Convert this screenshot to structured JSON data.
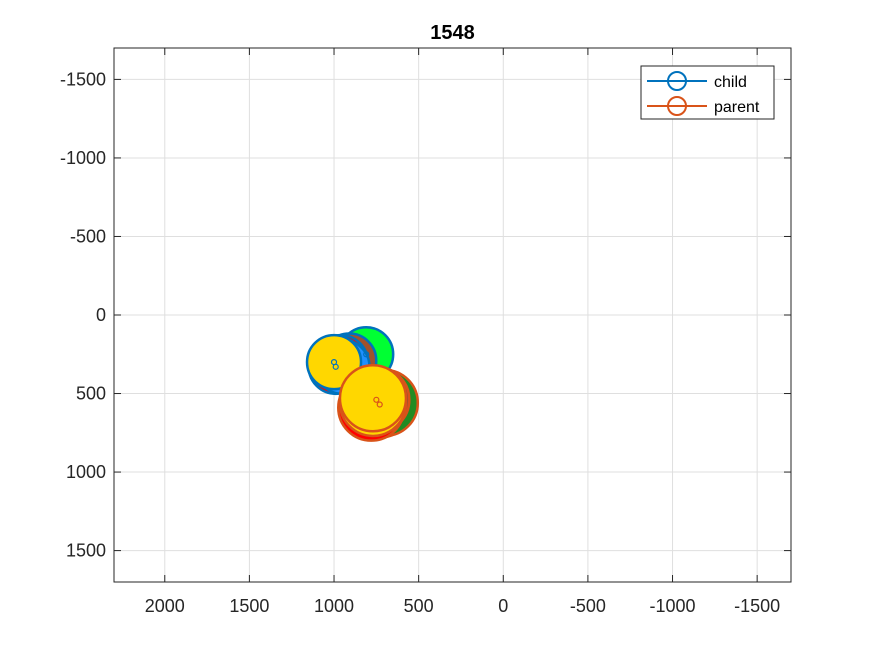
{
  "chart_data": {
    "type": "scatter",
    "title": "1548",
    "xlabel": "",
    "ylabel": "",
    "xlim": [
      2300,
      -1700
    ],
    "ylim": [
      1700,
      -1700
    ],
    "x_reversed": true,
    "y_reversed": true,
    "xticks": [
      2000,
      1500,
      1000,
      500,
      0,
      -500,
      -1000,
      -1500
    ],
    "xtick_labels": [
      "2000",
      "1500",
      "1000",
      "500",
      "0",
      "-500",
      "-1000",
      "-1500"
    ],
    "yticks": [
      -1500,
      -1000,
      -500,
      0,
      500,
      1000,
      1500
    ],
    "ytick_labels": [
      "-1500",
      "-1000",
      "-500",
      "0",
      "500",
      "1000",
      "1500"
    ],
    "grid": true,
    "legend_position": "top-right",
    "series": [
      {
        "name": "child",
        "color": "#0072BD",
        "points": [
          {
            "x": 810,
            "y": 250,
            "fill": "#00FF33"
          },
          {
            "x": 910,
            "y": 290,
            "fill": "#A0522D"
          },
          {
            "x": 960,
            "y": 300,
            "fill": "#FF0000"
          },
          {
            "x": 990,
            "y": 330,
            "fill": "#FF0000"
          },
          {
            "x": 980,
            "y": 310,
            "fill": "#FFD700"
          },
          {
            "x": 950,
            "y": 330,
            "fill": "#1E90FF"
          },
          {
            "x": 1000,
            "y": 300,
            "fill": "#FFD700"
          }
        ]
      },
      {
        "name": "parent",
        "color": "#D95319",
        "points": [
          {
            "x": 730,
            "y": 570,
            "fill": "#FF0000"
          },
          {
            "x": 700,
            "y": 560,
            "fill": "#228B22"
          },
          {
            "x": 780,
            "y": 590,
            "fill": "#FF0000"
          },
          {
            "x": 750,
            "y": 540,
            "fill": "#A0522D"
          },
          {
            "x": 770,
            "y": 560,
            "fill": "#FFD700"
          },
          {
            "x": 770,
            "y": 530,
            "fill": "#FFD700"
          }
        ]
      }
    ]
  }
}
